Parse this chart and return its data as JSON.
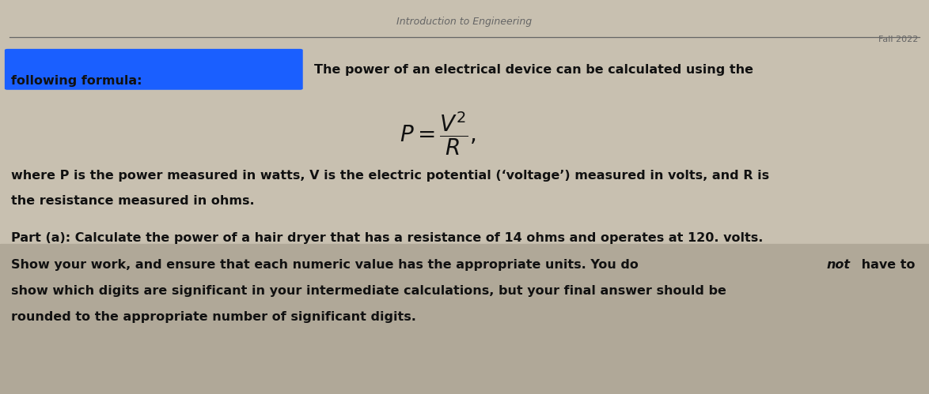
{
  "bg_color": "#c8c0b0",
  "bg_color_bottom": "#b0a898",
  "header_title": "Introduction to Engineering",
  "header_right": "Fall 2022",
  "blue_rect_color": "#1a5fff",
  "line1_left": "following formula:",
  "line1_right": "The power of an electrical device can be calculated using the",
  "where_line1": "where P is the power measured in watts, V is the electric potential (‘voltage’) measured in volts, and R is",
  "where_line2": "the resistance measured in ohms.",
  "part_line1": "Part (a): Calculate the power of a hair dryer that has a resistance of 14 ohms and operates at 120. volts.",
  "part_line2_pre": "Show your work, and ensure that each numeric value has the appropriate units. You do ",
  "part_line2_bold": "not",
  "part_line2_post": " have to",
  "part_line3": "show which digits are significant in your intermediate calculations, but your final answer should be",
  "part_line4": "rounded to the appropriate number of significant digits.",
  "header_line_color": "#666666",
  "text_color": "#111111",
  "header_text_color": "#666666"
}
